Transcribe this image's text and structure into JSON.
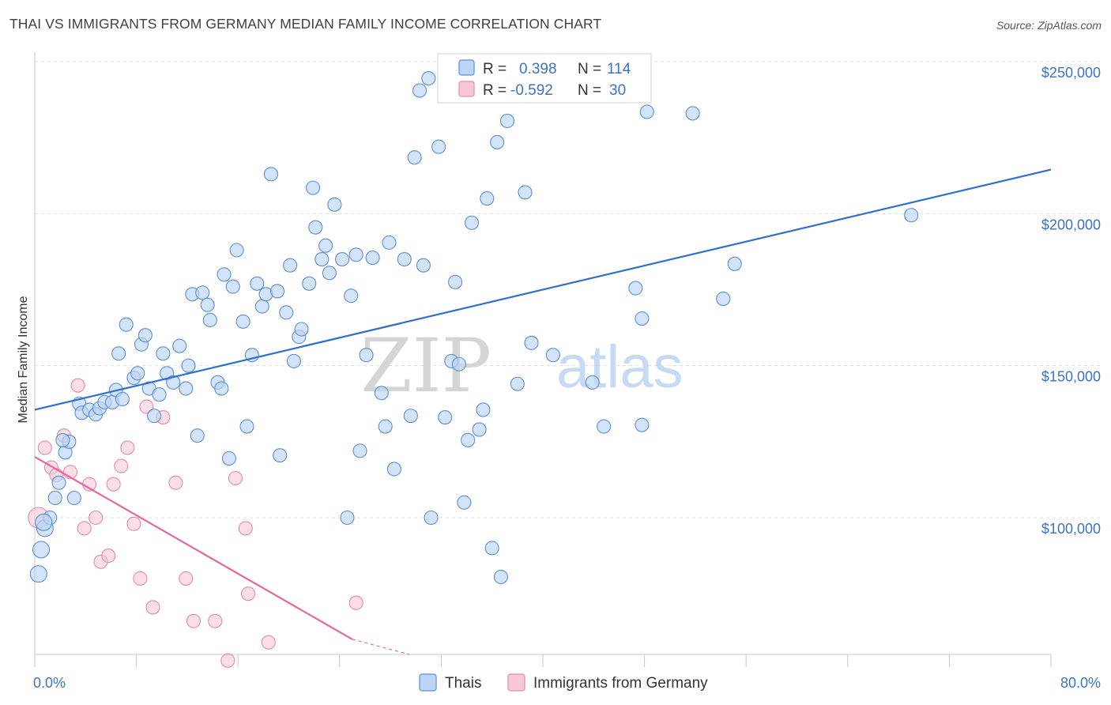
{
  "title": "THAI VS IMMIGRANTS FROM GERMANY MEDIAN FAMILY INCOME CORRELATION CHART",
  "source": "Source: ZipAtlas.com",
  "watermark": {
    "zip": "ZIP",
    "atlas": "atlas"
  },
  "colors": {
    "blue": "#3b73c4",
    "blue_line": "#2f6fd1",
    "blue_fill": "#bcd4f5",
    "pink": "#e8679a",
    "pink_fill": "#f8c8d8",
    "grid": "#dcdcdc"
  },
  "chart_data": {
    "type": "scatter",
    "title": "THAI VS IMMIGRANTS FROM GERMANY MEDIAN FAMILY INCOME CORRELATION CHART",
    "xlabel": "",
    "ylabel": "Median Family Income",
    "xlim": [
      0,
      80
    ],
    "ylim": [
      50000,
      255000
    ],
    "x_tick_labels": {
      "min": "0.0%",
      "max": "80.0%"
    },
    "y_ticks": [
      {
        "value": 100000,
        "label": "$100,000"
      },
      {
        "value": 150000,
        "label": "$150,000"
      },
      {
        "value": 200000,
        "label": "$200,000"
      },
      {
        "value": 250000,
        "label": "$250,000"
      }
    ],
    "legend": {
      "series": [
        {
          "r_label": "R =",
          "r": "0.398",
          "n_label": "N =",
          "n": "114"
        },
        {
          "r_label": "R =",
          "r": "-0.592",
          "n_label": "N =",
          "n": "30"
        }
      ]
    },
    "series": [
      {
        "name": "Thais",
        "trend": {
          "x": [
            0,
            80
          ],
          "y": [
            135500,
            214500
          ],
          "dashed_to": null
        },
        "points": [
          [
            0.3,
            81500
          ],
          [
            0.5,
            89500
          ],
          [
            0.8,
            96500
          ],
          [
            1.2,
            100000
          ],
          [
            1.6,
            106500
          ],
          [
            1.9,
            111500
          ],
          [
            2.4,
            121500
          ],
          [
            2.7,
            125000
          ],
          [
            3.1,
            106500
          ],
          [
            3.5,
            137500
          ],
          [
            3.7,
            134500
          ],
          [
            4.3,
            135500
          ],
          [
            4.8,
            134000
          ],
          [
            5.1,
            136000
          ],
          [
            5.5,
            138000
          ],
          [
            6.1,
            138000
          ],
          [
            6.4,
            142000
          ],
          [
            6.6,
            154000
          ],
          [
            6.9,
            139000
          ],
          [
            7.2,
            163500
          ],
          [
            7.8,
            146000
          ],
          [
            8.1,
            147500
          ],
          [
            8.4,
            157000
          ],
          [
            8.7,
            160000
          ],
          [
            9.0,
            142500
          ],
          [
            9.4,
            133500
          ],
          [
            9.8,
            140500
          ],
          [
            10.1,
            154000
          ],
          [
            10.4,
            147500
          ],
          [
            10.9,
            144500
          ],
          [
            11.4,
            156500
          ],
          [
            11.9,
            142500
          ],
          [
            12.1,
            150000
          ],
          [
            12.4,
            173500
          ],
          [
            12.8,
            127000
          ],
          [
            13.2,
            174000
          ],
          [
            13.6,
            170000
          ],
          [
            13.8,
            165000
          ],
          [
            14.4,
            144500
          ],
          [
            14.7,
            142500
          ],
          [
            14.9,
            180000
          ],
          [
            15.3,
            119500
          ],
          [
            15.6,
            176000
          ],
          [
            15.9,
            188000
          ],
          [
            16.4,
            164500
          ],
          [
            16.7,
            130000
          ],
          [
            17.1,
            153500
          ],
          [
            17.5,
            177000
          ],
          [
            17.9,
            169500
          ],
          [
            18.2,
            173500
          ],
          [
            18.6,
            213000
          ],
          [
            19.1,
            174500
          ],
          [
            19.3,
            120500
          ],
          [
            19.8,
            167500
          ],
          [
            20.1,
            183000
          ],
          [
            20.4,
            151500
          ],
          [
            20.8,
            159500
          ],
          [
            21.0,
            162000
          ],
          [
            21.6,
            177000
          ],
          [
            21.9,
            208500
          ],
          [
            22.1,
            195500
          ],
          [
            22.6,
            185000
          ],
          [
            22.9,
            189500
          ],
          [
            23.2,
            180500
          ],
          [
            23.6,
            203000
          ],
          [
            24.2,
            185000
          ],
          [
            24.6,
            100000
          ],
          [
            24.9,
            173000
          ],
          [
            25.3,
            186500
          ],
          [
            25.6,
            122000
          ],
          [
            26.1,
            153500
          ],
          [
            26.6,
            185500
          ],
          [
            27.3,
            141000
          ],
          [
            27.6,
            130000
          ],
          [
            27.9,
            190500
          ],
          [
            28.3,
            116000
          ],
          [
            29.1,
            185000
          ],
          [
            29.6,
            133500
          ],
          [
            29.9,
            218500
          ],
          [
            30.3,
            240500
          ],
          [
            30.6,
            183000
          ],
          [
            31.0,
            244500
          ],
          [
            31.2,
            100000
          ],
          [
            31.8,
            222000
          ],
          [
            32.3,
            133000
          ],
          [
            32.8,
            151500
          ],
          [
            33.1,
            177500
          ],
          [
            33.4,
            150500
          ],
          [
            33.8,
            105000
          ],
          [
            34.1,
            125500
          ],
          [
            34.4,
            197000
          ],
          [
            35.0,
            129000
          ],
          [
            35.3,
            135500
          ],
          [
            35.6,
            205000
          ],
          [
            36.0,
            90000
          ],
          [
            36.4,
            223500
          ],
          [
            36.7,
            80500
          ],
          [
            37.2,
            230500
          ],
          [
            38.0,
            144000
          ],
          [
            38.6,
            207000
          ],
          [
            39.1,
            157500
          ],
          [
            40.8,
            153500
          ],
          [
            43.9,
            144500
          ],
          [
            44.8,
            130000
          ],
          [
            47.3,
            175500
          ],
          [
            47.8,
            165500
          ],
          [
            47.8,
            130500
          ],
          [
            48.2,
            233500
          ],
          [
            51.8,
            233000
          ],
          [
            54.2,
            172000
          ],
          [
            55.1,
            183500
          ],
          [
            69.0,
            199500
          ],
          [
            0.7,
            98500
          ],
          [
            2.2,
            125500
          ]
        ]
      },
      {
        "name": "Immigrants from Germany",
        "trend": {
          "x": [
            0,
            25,
            29.5
          ],
          "y": [
            120000,
            60000,
            48500
          ],
          "dashed_from": 25
        },
        "points": [
          [
            0.3,
            100000
          ],
          [
            0.8,
            123000
          ],
          [
            1.3,
            116500
          ],
          [
            1.7,
            114000
          ],
          [
            2.3,
            127000
          ],
          [
            2.8,
            115000
          ],
          [
            3.4,
            143500
          ],
          [
            3.9,
            96500
          ],
          [
            4.3,
            111000
          ],
          [
            4.8,
            100000
          ],
          [
            5.2,
            85500
          ],
          [
            5.8,
            87500
          ],
          [
            6.2,
            111000
          ],
          [
            6.8,
            117000
          ],
          [
            7.3,
            123000
          ],
          [
            7.8,
            98000
          ],
          [
            8.3,
            80000
          ],
          [
            8.8,
            136500
          ],
          [
            9.3,
            70500
          ],
          [
            10.1,
            133000
          ],
          [
            11.1,
            111500
          ],
          [
            11.9,
            80000
          ],
          [
            12.5,
            66000
          ],
          [
            14.2,
            66000
          ],
          [
            15.2,
            53000
          ],
          [
            15.8,
            113000
          ],
          [
            16.6,
            96500
          ],
          [
            16.8,
            75000
          ],
          [
            18.4,
            59000
          ],
          [
            25.3,
            72000
          ]
        ]
      }
    ]
  },
  "bottom_legend": [
    {
      "label": "Thais"
    },
    {
      "label": "Immigrants from Germany"
    }
  ]
}
